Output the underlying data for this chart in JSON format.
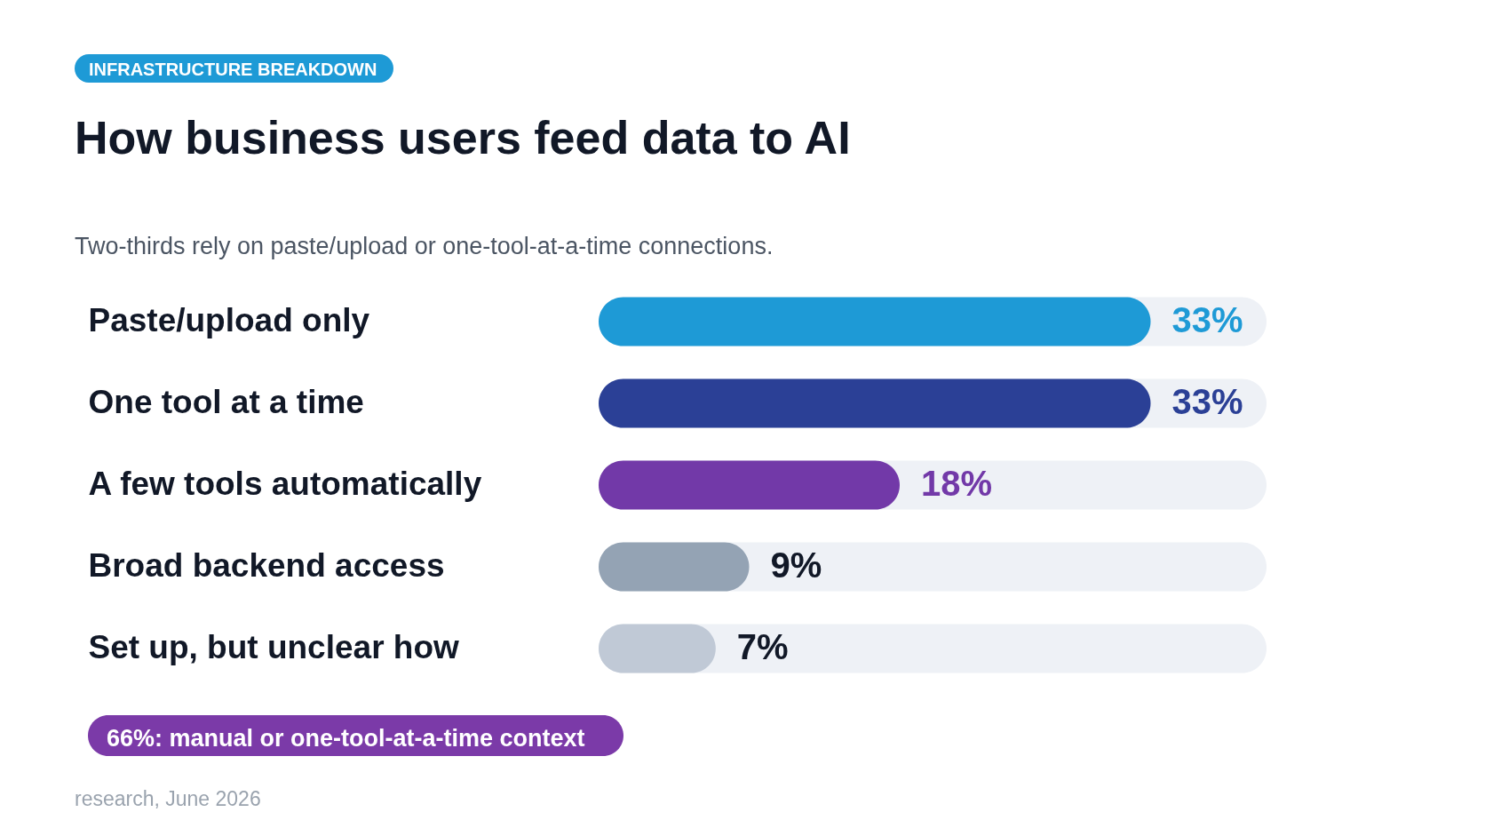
{
  "chart_data": {
    "type": "bar",
    "orientation": "horizontal",
    "title": "How business users feed data to AI",
    "subtitle": "Two-thirds rely on paste/upload or one-tool-at-a-time connections.",
    "categories": [
      "Paste/upload only",
      "One tool at a time",
      "A few tools automatically",
      "Broad backend access",
      "Set up, but unclear how"
    ],
    "values": [
      33,
      33,
      18,
      9,
      7
    ],
    "value_labels": [
      "33%",
      "33%",
      "18%",
      "9%",
      "7%"
    ],
    "colors": [
      "#1e9ad6",
      "#2b4096",
      "#7239a8",
      "#94a3b4",
      "#c0c9d6"
    ],
    "annotations": [
      "INFRASTRUCTURE BREAKDOWN",
      "66%: manual or one-tool-at-a-time context",
      "research, June 2026"
    ]
  }
}
